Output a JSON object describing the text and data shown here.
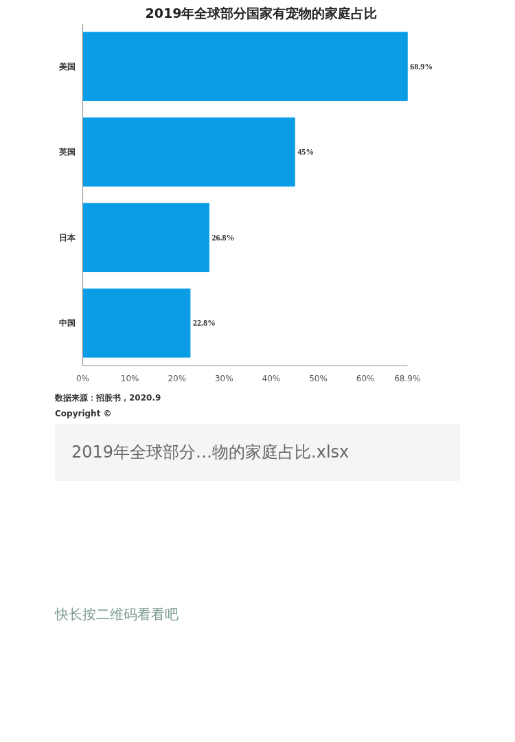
{
  "chart_data": {
    "type": "bar",
    "orientation": "horizontal",
    "title": "2019年全球部分国家有宠物的家庭占比",
    "categories": [
      "美国",
      "英国",
      "日本",
      "中国"
    ],
    "values": [
      68.9,
      45,
      26.8,
      22.8
    ],
    "color": "#0a9de6",
    "value_labels": [
      "68.9%",
      "45%",
      "26.8%",
      "22.8%"
    ],
    "xlim": [
      0,
      68.9
    ],
    "xticks": [
      {
        "value": 0,
        "label": "0%"
      },
      {
        "value": 10,
        "label": "10%"
      },
      {
        "value": 20,
        "label": "20%"
      },
      {
        "value": 30,
        "label": "30%"
      },
      {
        "value": 40,
        "label": "40%"
      },
      {
        "value": 50,
        "label": "50%"
      },
      {
        "value": 60,
        "label": "60%"
      },
      {
        "value": 68.9,
        "label": "68.9%"
      }
    ],
    "grid": false,
    "annotations": [
      "数据来源：招股书，2020.9",
      "Copyright ©",
      "2019年全球部分…物的家庭占比.xlsx",
      "快长按二维码看看吧"
    ]
  }
}
